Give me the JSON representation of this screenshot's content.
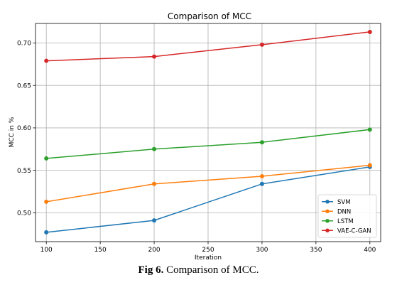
{
  "chart_data": {
    "type": "line",
    "title": "Comparison of MCC",
    "xlabel": "Iteration",
    "ylabel": "MCC in %",
    "x": [
      100,
      200,
      300,
      400
    ],
    "xlim": [
      90,
      410
    ],
    "ylim": [
      0.466,
      0.723
    ],
    "xticks": [
      100,
      150,
      200,
      250,
      300,
      350,
      400
    ],
    "yticks": [
      0.5,
      0.55,
      0.6,
      0.65,
      0.7
    ],
    "grid": true,
    "legend_position": "lower-right",
    "series": [
      {
        "name": "SVM",
        "color": "#1f77b4",
        "values": [
          0.477,
          0.491,
          0.534,
          0.554
        ]
      },
      {
        "name": "DNN",
        "color": "#ff7f0e",
        "values": [
          0.513,
          0.534,
          0.543,
          0.556
        ]
      },
      {
        "name": "LSTM",
        "color": "#2ca02c",
        "values": [
          0.564,
          0.575,
          0.583,
          0.598
        ]
      },
      {
        "name": "VAE-C-GAN",
        "color": "#d62728",
        "values": [
          0.679,
          0.684,
          0.698,
          0.713
        ]
      }
    ]
  },
  "caption": {
    "label": "Fig 6.",
    "text": " Comparison of MCC."
  }
}
